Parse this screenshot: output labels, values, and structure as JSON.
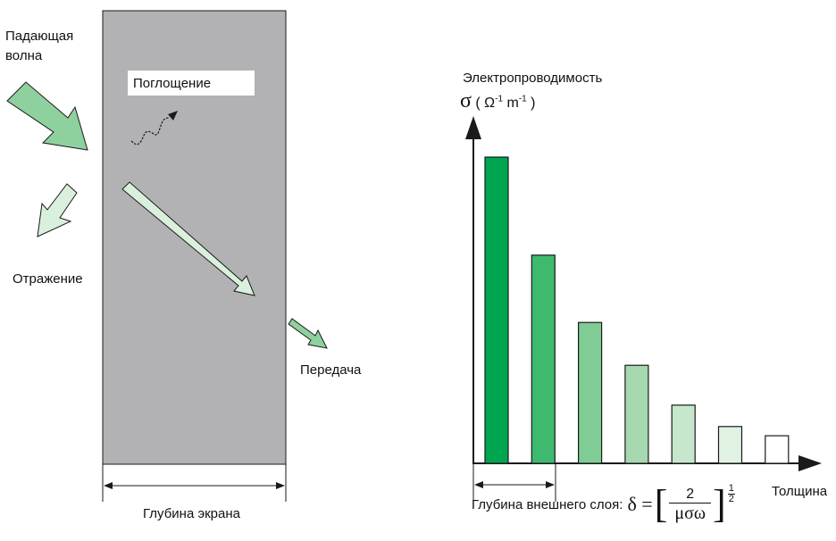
{
  "labels": {
    "incident_line1": "Падающая",
    "incident_line2": "волна",
    "absorption": "Поглощение",
    "reflection": "Отражение",
    "transmission": "Передача",
    "screen_depth": "Глубина экрана",
    "conductivity": "Электропроводимость",
    "sigma": "σ",
    "unit_open": "( Ω",
    "unit_exp1": "-1",
    "unit_m": " m",
    "unit_exp2": "-1",
    "unit_close": " )",
    "thickness": "Толщина",
    "skin_depth": "Глубина внешнего слоя:",
    "formula_delta": "δ =",
    "formula_num": "2",
    "formula_den": "μσω",
    "formula_exp_num": "1",
    "formula_exp_den": "2"
  },
  "bars": [
    {
      "value": 1.0,
      "color": "#00a54f"
    },
    {
      "value": 0.68,
      "color": "#3dba6e"
    },
    {
      "value": 0.46,
      "color": "#7fcd94"
    },
    {
      "value": 0.32,
      "color": "#a6d9b0"
    },
    {
      "value": 0.19,
      "color": "#c6e7cc"
    },
    {
      "value": 0.12,
      "color": "#e1f2e3"
    },
    {
      "value": 0.09,
      "color": "#ffffff"
    }
  ],
  "colors": {
    "screen": "#b2b2b4",
    "arrow_dark": "#8fd19e",
    "arrow_light": "#d9f0dc",
    "stroke": "#1a1a1a"
  }
}
